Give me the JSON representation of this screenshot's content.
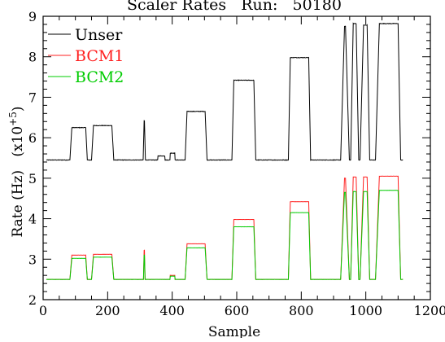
{
  "chart_data": {
    "type": "line",
    "title": "Scaler Rates   Run:   50180",
    "xlabel": "Sample",
    "ylabel": "Rate (Hz)   (x10",
    "ylabel_exponent": "+5",
    "ylabel_suffix": ")",
    "xlim": [
      0,
      1200
    ],
    "ylim": [
      2,
      9
    ],
    "x_ticks": [
      0,
      200,
      400,
      600,
      800,
      1000,
      1200
    ],
    "y_ticks": [
      2,
      3,
      4,
      5,
      6,
      7,
      8,
      9
    ],
    "legend_position": "top-left",
    "grid": false,
    "series": [
      {
        "name": "Unser",
        "color": "#000000",
        "base": 5.45,
        "blocks": [
          [
            83,
            89,
            132,
            137,
            6.25
          ],
          [
            150,
            156,
            213,
            219,
            6.3
          ],
          [
            310,
            313,
            314,
            317,
            6.42
          ],
          [
            355,
            356,
            377,
            378,
            5.55
          ],
          [
            393,
            394,
            408,
            409,
            5.62
          ],
          [
            440,
            446,
            502,
            508,
            6.65
          ],
          [
            585,
            591,
            653,
            659,
            7.42
          ],
          [
            760,
            766,
            823,
            829,
            7.98
          ],
          [
            922,
            934,
            937,
            949,
            8.75
          ],
          [
            953,
            961,
            970,
            978,
            8.82
          ],
          [
            982,
            993,
            1004,
            1012,
            8.78
          ],
          [
            1030,
            1042,
            1100,
            1108,
            8.82
          ]
        ],
        "x_range": [
          10,
          1115
        ]
      },
      {
        "name": "BCM1",
        "color": "#ff2020",
        "base": 2.5,
        "blocks": [
          [
            83,
            89,
            132,
            137,
            3.1
          ],
          [
            150,
            156,
            213,
            219,
            3.12
          ],
          [
            311,
            313,
            314,
            316,
            3.22
          ],
          [
            393,
            394,
            408,
            409,
            2.6
          ],
          [
            440,
            446,
            502,
            508,
            3.38
          ],
          [
            585,
            591,
            653,
            659,
            3.98
          ],
          [
            760,
            766,
            823,
            829,
            4.42
          ],
          [
            922,
            934,
            937,
            949,
            5.0
          ],
          [
            953,
            961,
            970,
            978,
            5.03
          ],
          [
            982,
            993,
            1004,
            1012,
            5.03
          ],
          [
            1030,
            1042,
            1100,
            1108,
            5.05
          ]
        ],
        "x_range": [
          10,
          1115
        ]
      },
      {
        "name": "BCM2",
        "color": "#00cc00",
        "base": 2.5,
        "blocks": [
          [
            83,
            89,
            132,
            137,
            3.02
          ],
          [
            150,
            156,
            213,
            219,
            3.05
          ],
          [
            311,
            313,
            314,
            316,
            3.1
          ],
          [
            393,
            394,
            408,
            409,
            2.58
          ],
          [
            440,
            446,
            502,
            508,
            3.28
          ],
          [
            585,
            591,
            653,
            659,
            3.8
          ],
          [
            760,
            766,
            823,
            829,
            4.15
          ],
          [
            922,
            934,
            937,
            949,
            4.65
          ],
          [
            953,
            961,
            970,
            978,
            4.67
          ],
          [
            982,
            993,
            1004,
            1012,
            4.67
          ],
          [
            1030,
            1042,
            1100,
            1108,
            4.7
          ]
        ],
        "x_range": [
          10,
          1115
        ]
      }
    ]
  }
}
